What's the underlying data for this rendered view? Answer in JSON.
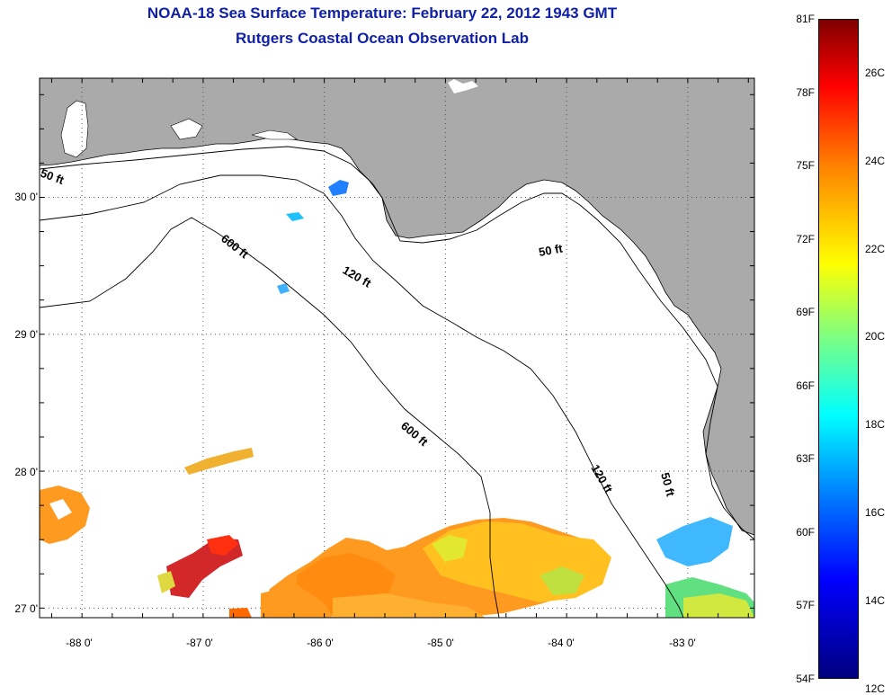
{
  "title": {
    "line1": "NOAA-18 Sea Surface Temperature:  February 22, 2012 1943 GMT",
    "line2": "Rutgers Coastal Ocean Observation Lab"
  },
  "map": {
    "lat_labels": [
      "30 0'",
      "29 0'",
      "28 0'",
      "27 0'"
    ],
    "lat_values": [
      30,
      29,
      28,
      27
    ],
    "lon_labels": [
      "-88 0'",
      "-87 0'",
      "-86 0'",
      "-85 0'",
      "-84 0'",
      "-83 0'"
    ],
    "lon_values": [
      -88,
      -87,
      -86,
      -85,
      -84,
      -83
    ],
    "lon_range": [
      -88.35,
      -82.45
    ],
    "lat_range": [
      26.93,
      30.87
    ],
    "contours": [
      "50 ft",
      "50 ft",
      "50 ft",
      "120 ft",
      "120 ft",
      "600 ft",
      "600 ft"
    ],
    "land_color": "#aaaaaa",
    "ocean_color": "#ffffff"
  },
  "colorbar": {
    "f_labels": [
      "81F",
      "78F",
      "75F",
      "72F",
      "69F",
      "66F",
      "63F",
      "60F",
      "57F",
      "54F"
    ],
    "c_labels": [
      "26C",
      "24C",
      "22C",
      "20C",
      "18C",
      "16C",
      "14C",
      "12C"
    ],
    "f_values": [
      81,
      78,
      75,
      72,
      69,
      66,
      63,
      60,
      57,
      54
    ],
    "c_values": [
      26,
      24,
      22,
      20,
      18,
      16,
      14,
      12
    ],
    "range_f": [
      54,
      81
    ]
  }
}
